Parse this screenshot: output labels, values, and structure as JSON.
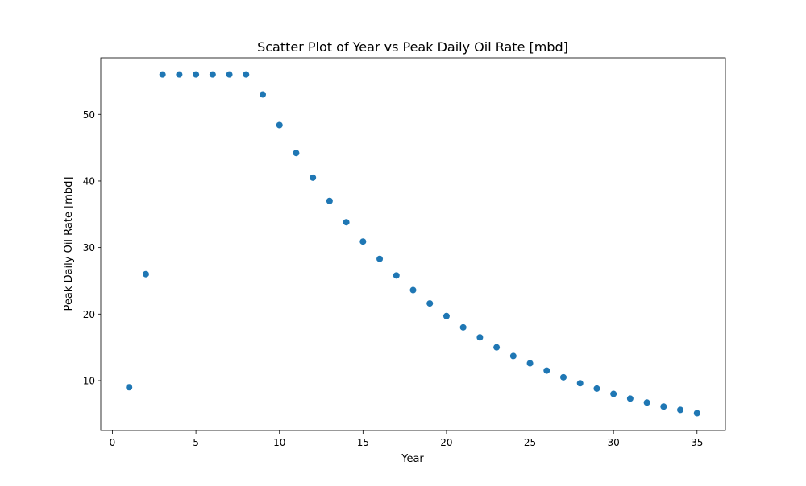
{
  "chart_data": {
    "type": "scatter",
    "title": "Scatter Plot of Year vs Peak Daily Oil Rate [mbd]",
    "xlabel": "Year",
    "ylabel": "Peak Daily Oil Rate [mbd]",
    "xlim": [
      -0.7,
      36.7
    ],
    "ylim": [
      2.5,
      58.5
    ],
    "xticks": [
      0,
      5,
      10,
      15,
      20,
      25,
      30,
      35
    ],
    "yticks": [
      10,
      20,
      30,
      40,
      50
    ],
    "grid": false,
    "legend": "none",
    "marker_color": "#1f77b4",
    "series": [
      {
        "x": [
          1,
          2,
          3,
          4,
          5,
          6,
          7,
          8,
          9,
          10,
          11,
          12,
          13,
          14,
          15,
          16,
          17,
          18,
          19,
          20,
          21,
          22,
          23,
          24,
          25,
          26,
          27,
          28,
          29,
          30,
          31,
          32,
          33,
          34,
          35
        ],
        "y": [
          9.0,
          26.0,
          56.0,
          56.0,
          56.0,
          56.0,
          56.0,
          56.0,
          53.0,
          48.4,
          44.2,
          40.5,
          37.0,
          33.8,
          30.9,
          28.3,
          25.8,
          23.6,
          21.6,
          19.7,
          18.0,
          16.5,
          15.0,
          13.7,
          12.6,
          11.5,
          10.5,
          9.6,
          8.8,
          8.0,
          7.3,
          6.7,
          6.1,
          5.6,
          5.1
        ]
      }
    ]
  }
}
